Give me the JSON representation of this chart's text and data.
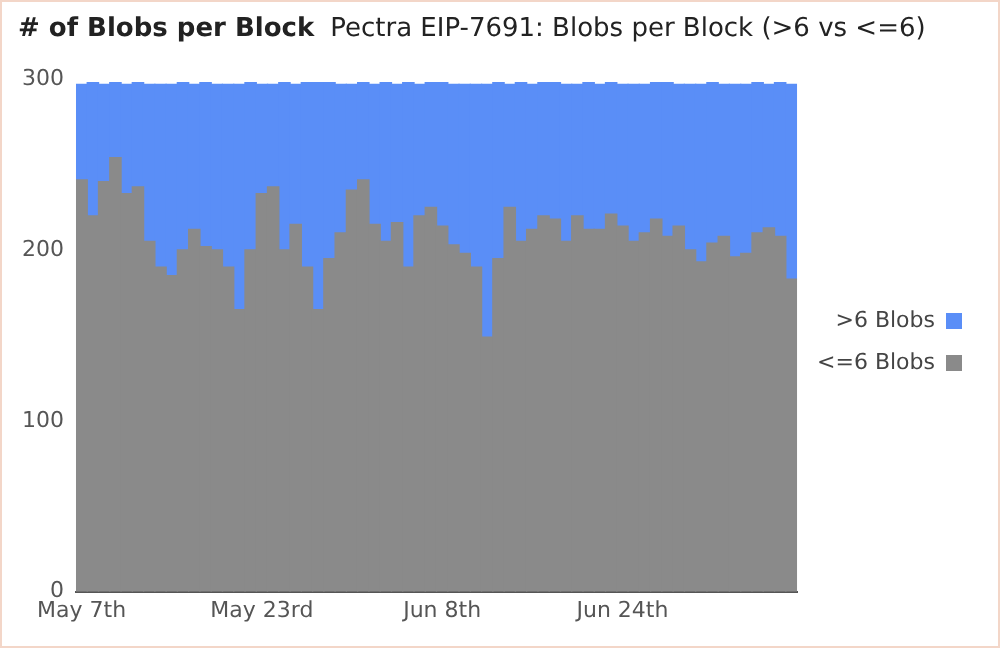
{
  "chart_data": {
    "type": "bar",
    "title": "# of Blobs per Block",
    "subtitle": "Pectra EIP-7691: Blobs per Block (>6 vs <=6)",
    "categories": [
      "May 7th",
      null,
      null,
      null,
      null,
      null,
      null,
      null,
      null,
      null,
      null,
      null,
      null,
      null,
      null,
      null,
      "May 23rd",
      null,
      null,
      null,
      null,
      null,
      null,
      null,
      null,
      null,
      null,
      null,
      null,
      null,
      null,
      null,
      "Jun 8th",
      null,
      null,
      null,
      null,
      null,
      null,
      null,
      null,
      null,
      null,
      null,
      null,
      null,
      null,
      null,
      "Jun 24th",
      null,
      null,
      null,
      null,
      null,
      null,
      null,
      null,
      null,
      null,
      null,
      null,
      null,
      null,
      null
    ],
    "stacked": true,
    "series": [
      {
        "name": "<=6 Blobs",
        "color": "#8a8a8a",
        "values": [
          241,
          220,
          240,
          254,
          233,
          237,
          205,
          190,
          185,
          200,
          212,
          202,
          200,
          190,
          165,
          200,
          233,
          237,
          200,
          215,
          190,
          165,
          195,
          210,
          235,
          241,
          215,
          205,
          216,
          190,
          220,
          225,
          214,
          203,
          198,
          190,
          149,
          195,
          225,
          205,
          212,
          220,
          218,
          205,
          220,
          212,
          212,
          221,
          214,
          205,
          210,
          218,
          208,
          214,
          200,
          193,
          204,
          208,
          196,
          198,
          210,
          213,
          208,
          183
        ]
      },
      {
        "name": ">6 Blobs",
        "color": "#5a8ef7",
        "values": [
          56,
          78,
          57,
          44,
          64,
          61,
          92,
          107,
          112,
          98,
          85,
          96,
          97,
          107,
          132,
          98,
          64,
          60,
          98,
          82,
          108,
          133,
          103,
          87,
          62,
          57,
          82,
          93,
          81,
          108,
          77,
          73,
          84,
          94,
          99,
          107,
          148,
          103,
          72,
          93,
          85,
          78,
          80,
          92,
          77,
          86,
          85,
          77,
          83,
          92,
          87,
          80,
          90,
          83,
          97,
          104,
          94,
          89,
          101,
          99,
          88,
          84,
          90,
          114
        ]
      }
    ],
    "ylim": [
      0,
      300
    ],
    "yticks": [
      0,
      100,
      200,
      300
    ],
    "legend": "right"
  }
}
